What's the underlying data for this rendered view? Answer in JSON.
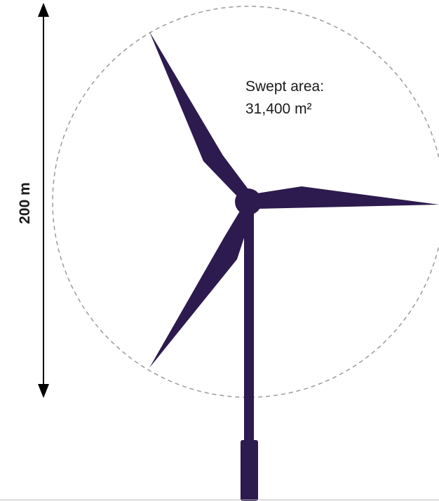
{
  "height_label": "200 m",
  "swept_area": {
    "label": "Swept area:",
    "value": "31,400 m²"
  }
}
